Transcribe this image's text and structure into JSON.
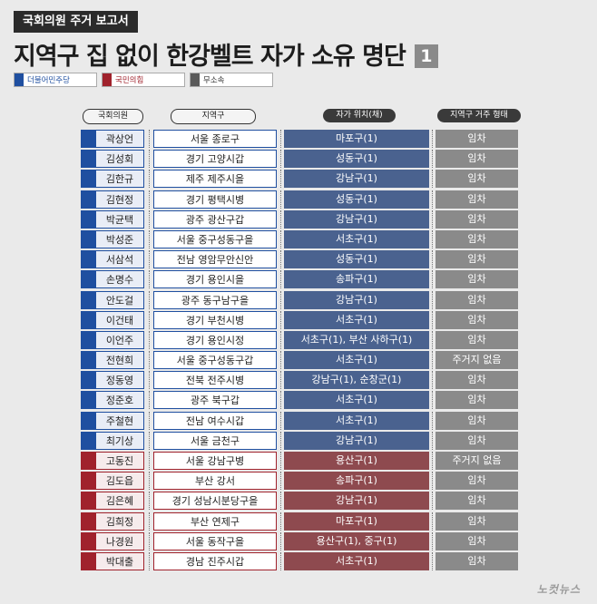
{
  "header": {
    "tag": "국회의원 주거 보고서",
    "title": "지역구 집 없이 한강벨트 자가 소유 명단",
    "number": "1"
  },
  "legend": [
    {
      "label": "더불어민주당",
      "color": "#1f4fa0"
    },
    {
      "label": "국민의힘",
      "color": "#a0222c"
    },
    {
      "label": "무소속",
      "color": "#5a5a5a"
    }
  ],
  "columns": [
    "국회의원",
    "지역구",
    "자가 위치(채)",
    "지역구 거주 형태"
  ],
  "rows": [
    {
      "name": "곽상언",
      "district": "서울 종로구",
      "home": "마포구(1)",
      "residence": "임차",
      "party": "dem"
    },
    {
      "name": "김성회",
      "district": "경기 고양시갑",
      "home": "성동구(1)",
      "residence": "임차",
      "party": "dem"
    },
    {
      "name": "김한규",
      "district": "제주 제주시을",
      "home": "강남구(1)",
      "residence": "임차",
      "party": "dem"
    },
    {
      "name": "김현정",
      "district": "경기 평택시병",
      "home": "성동구(1)",
      "residence": "임차",
      "party": "dem"
    },
    {
      "name": "박균택",
      "district": "광주 광산구갑",
      "home": "강남구(1)",
      "residence": "임차",
      "party": "dem"
    },
    {
      "name": "박성준",
      "district": "서울 중구성동구을",
      "home": "서초구(1)",
      "residence": "임차",
      "party": "dem"
    },
    {
      "name": "서삼석",
      "district": "전남 영암무안신안",
      "home": "성동구(1)",
      "residence": "임차",
      "party": "dem"
    },
    {
      "name": "손명수",
      "district": "경기 용인시을",
      "home": "송파구(1)",
      "residence": "임차",
      "party": "dem"
    },
    {
      "name": "안도걸",
      "district": "광주 동구남구을",
      "home": "강남구(1)",
      "residence": "임차",
      "party": "dem"
    },
    {
      "name": "이건태",
      "district": "경기 부천시병",
      "home": "서초구(1)",
      "residence": "임차",
      "party": "dem"
    },
    {
      "name": "이언주",
      "district": "경기 용인시정",
      "home": "서초구(1), 부산 사하구(1)",
      "residence": "임차",
      "party": "dem"
    },
    {
      "name": "전현희",
      "district": "서울 중구성동구갑",
      "home": "서초구(1)",
      "residence": "주거지 없음",
      "party": "dem"
    },
    {
      "name": "정동영",
      "district": "전북 전주시병",
      "home": "강남구(1), 순창군(1)",
      "residence": "임차",
      "party": "dem"
    },
    {
      "name": "정준호",
      "district": "광주 북구갑",
      "home": "서초구(1)",
      "residence": "임차",
      "party": "dem"
    },
    {
      "name": "주철현",
      "district": "전남 여수시갑",
      "home": "서초구(1)",
      "residence": "임차",
      "party": "dem"
    },
    {
      "name": "최기상",
      "district": "서울 금천구",
      "home": "강남구(1)",
      "residence": "임차",
      "party": "dem"
    },
    {
      "name": "고동진",
      "district": "서울 강남구병",
      "home": "용산구(1)",
      "residence": "주거지 없음",
      "party": "ppp"
    },
    {
      "name": "김도읍",
      "district": "부산 강서",
      "home": "송파구(1)",
      "residence": "임차",
      "party": "ppp"
    },
    {
      "name": "김은혜",
      "district": "경기 성남시분당구을",
      "home": "강남구(1)",
      "residence": "임차",
      "party": "ppp"
    },
    {
      "name": "김희정",
      "district": "부산 연제구",
      "home": "마포구(1)",
      "residence": "임차",
      "party": "ppp"
    },
    {
      "name": "나경원",
      "district": "서울 동작구을",
      "home": "용산구(1), 중구(1)",
      "residence": "임차",
      "party": "ppp"
    },
    {
      "name": "박대출",
      "district": "경남 진주시갑",
      "home": "서초구(1)",
      "residence": "임차",
      "party": "ppp"
    }
  ],
  "logo": "노컷뉴스"
}
